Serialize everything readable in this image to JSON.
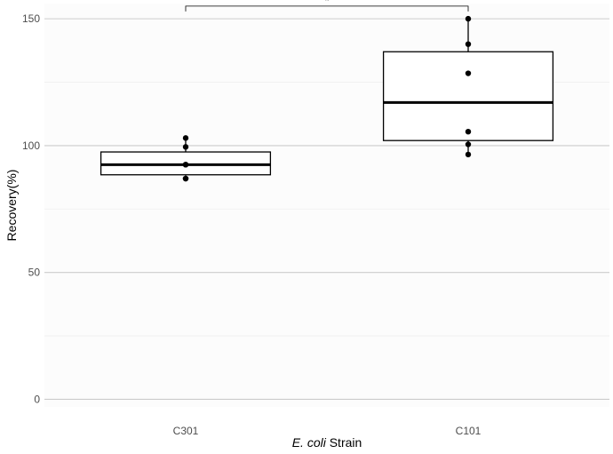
{
  "chart_data": {
    "type": "box",
    "categories": [
      "C301",
      "C101"
    ],
    "xlabel_italic": "E. coli",
    "xlabel_rest": " Strain",
    "ylabel": "Recovery(%)",
    "ylim": [
      -3,
      156
    ],
    "yticks": [
      0,
      50,
      100,
      150
    ],
    "ytick_labels": [
      "0",
      "50",
      "100",
      "150"
    ],
    "minor_yticks": [
      25,
      75,
      125
    ],
    "grid": true,
    "boxes": [
      {
        "category": "C301",
        "min": 87,
        "q1": 88.5,
        "median": 92.5,
        "q3": 97.5,
        "max": 103,
        "points": [
          103,
          99.5,
          92.5,
          92.5,
          87,
          87
        ]
      },
      {
        "category": "C101",
        "min": 96.5,
        "q1": 102,
        "median": 117,
        "q3": 137,
        "max": 150,
        "points": [
          150,
          140,
          128.5,
          105.5,
          100.5,
          96.5
        ]
      }
    ],
    "significance": {
      "from": "C301",
      "to": "C101",
      "y": 155,
      "label": "*"
    }
  }
}
